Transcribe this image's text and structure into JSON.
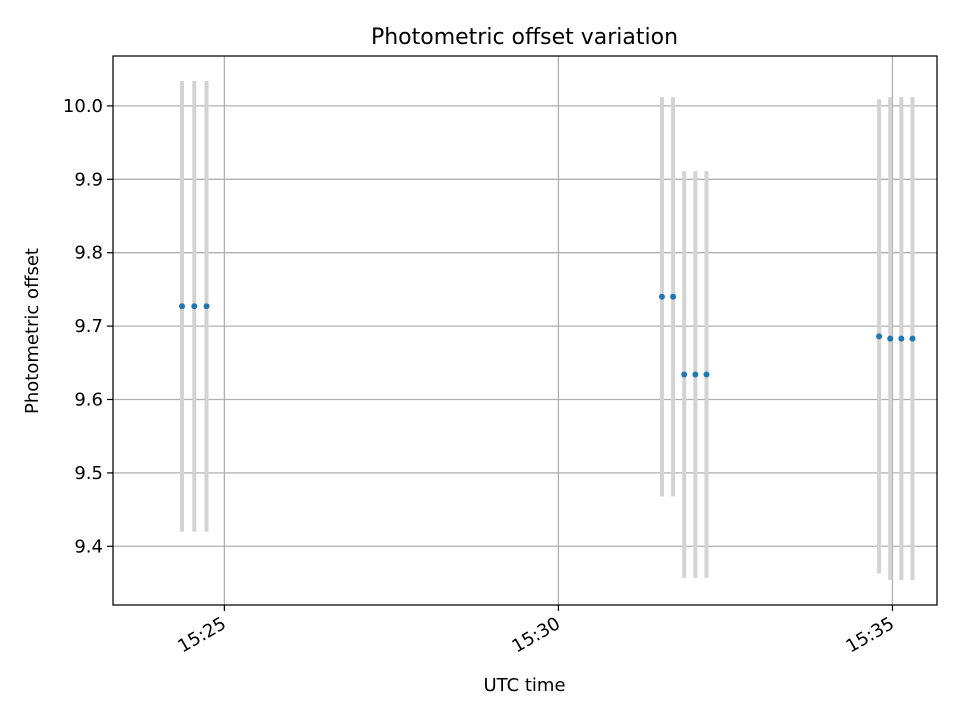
{
  "chart_data": {
    "type": "scatter",
    "title": "Photometric offset variation",
    "xlabel": "UTC time",
    "ylabel": "Photometric offset",
    "x_axis_kind": "time",
    "xlim": [
      "15:23:20",
      "15:35:40"
    ],
    "ylim": [
      9.32,
      10.068
    ],
    "x_ticks": [
      "15:25",
      "15:30",
      "15:35"
    ],
    "y_ticks": [
      "9.4",
      "9.5",
      "9.6",
      "9.7",
      "9.8",
      "9.9",
      "10.0"
    ],
    "grid": true,
    "marker_color": "#1f77b4",
    "errorbar_color": "#d3d3d3",
    "points": [
      {
        "x": "15:24:22",
        "y": 9.727,
        "yerr": 0.307
      },
      {
        "x": "15:24:33",
        "y": 9.727,
        "yerr": 0.307
      },
      {
        "x": "15:24:44",
        "y": 9.727,
        "yerr": 0.307
      },
      {
        "x": "15:31:33",
        "y": 9.74,
        "yerr": 0.272
      },
      {
        "x": "15:31:43",
        "y": 9.74,
        "yerr": 0.272
      },
      {
        "x": "15:31:53",
        "y": 9.634,
        "yerr": 0.277
      },
      {
        "x": "15:32:03",
        "y": 9.634,
        "yerr": 0.277
      },
      {
        "x": "15:32:13",
        "y": 9.634,
        "yerr": 0.277
      },
      {
        "x": "15:34:48",
        "y": 9.686,
        "yerr": 0.323
      },
      {
        "x": "15:34:58",
        "y": 9.683,
        "yerr": 0.329
      },
      {
        "x": "15:35:08",
        "y": 9.683,
        "yerr": 0.329
      },
      {
        "x": "15:35:18",
        "y": 9.683,
        "yerr": 0.329
      }
    ]
  }
}
